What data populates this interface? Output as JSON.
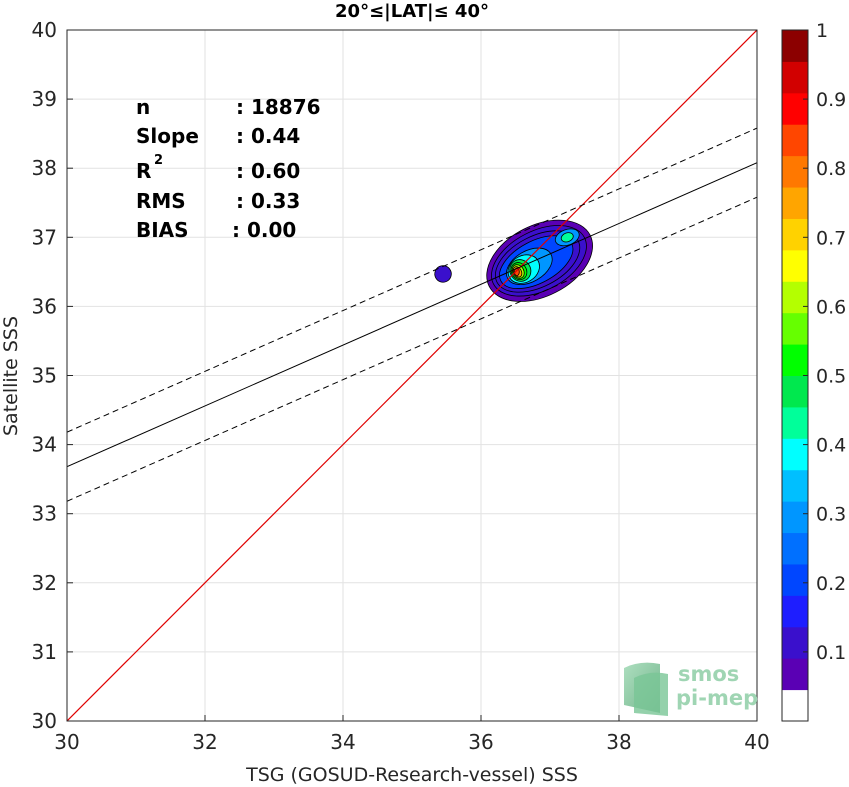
{
  "chart_data": {
    "type": "scatter",
    "title": "20°≤|LAT|≤ 40°",
    "xlabel": "TSG (GOSUD-Research-vessel) SSS",
    "ylabel": "Satellite SSS",
    "xlim": [
      30,
      40
    ],
    "ylim": [
      30,
      40
    ],
    "xticks": [
      "30",
      "32",
      "34",
      "36",
      "38",
      "40"
    ],
    "yticks": [
      "30",
      "31",
      "32",
      "33",
      "34",
      "35",
      "36",
      "37",
      "38",
      "39",
      "40"
    ],
    "grid": true,
    "stats": [
      {
        "label": "n",
        "value": ": 18876"
      },
      {
        "label": "Slope",
        "value": ": 0.44"
      },
      {
        "label": "R",
        "sup": "2",
        "value": ": 0.60"
      },
      {
        "label": "RMS",
        "value": ": 0.33"
      },
      {
        "label": "BIAS",
        "value": ": 0.00"
      }
    ],
    "identity_line": {
      "color": "#e00000",
      "x": [
        30,
        40
      ],
      "y": [
        30,
        40
      ]
    },
    "regression": {
      "slope": 0.44,
      "y_at_30": 33.68
    },
    "regression_band": {
      "offset": 0.5
    },
    "density_contours": {
      "peak": [
        36.52,
        36.5
      ],
      "secondary_peak": [
        37.25,
        37.0
      ],
      "isolated_blob": [
        35.45,
        36.47
      ],
      "levels": [
        0.05,
        0.15,
        0.25,
        0.35,
        0.45,
        0.55,
        0.65,
        0.75,
        0.85,
        0.95
      ]
    },
    "colorbar": {
      "range": [
        0,
        1
      ],
      "ticks": [
        "0.1",
        "0.2",
        "0.3",
        "0.4",
        "0.5",
        "0.6",
        "0.7",
        "0.8",
        "0.9",
        "1"
      ],
      "colors": [
        "#ffffff",
        "#5a00b4",
        "#3a10cc",
        "#1e1eff",
        "#0046ff",
        "#0070ff",
        "#0096ff",
        "#00bfff",
        "#00ffff",
        "#00ff9a",
        "#00e84e",
        "#00ff00",
        "#66ff00",
        "#b4ff00",
        "#ffff00",
        "#ffd200",
        "#ffa500",
        "#ff7800",
        "#ff4600",
        "#ff0000",
        "#d20000",
        "#8c0000"
      ]
    }
  },
  "logo": {
    "line1": "smos",
    "line2": "pi-mep"
  }
}
